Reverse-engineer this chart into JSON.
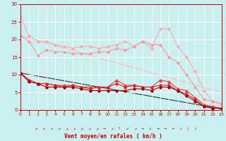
{
  "background_color": "#c8f0f0",
  "grid_color": "#ffffff",
  "xlabel": "Vent moyen/en rafales ( km/h )",
  "xlabel_color": "#cc0000",
  "tick_color": "#cc0000",
  "ylim": [
    0,
    30
  ],
  "xlim": [
    0,
    23
  ],
  "yticks": [
    0,
    5,
    10,
    15,
    20,
    25,
    30
  ],
  "xticks": [
    0,
    1,
    2,
    3,
    4,
    5,
    6,
    7,
    8,
    9,
    10,
    11,
    12,
    13,
    14,
    15,
    16,
    17,
    18,
    19,
    20,
    21,
    22,
    23
  ],
  "series": [
    {
      "x": [
        0,
        1,
        2,
        3,
        4,
        5,
        6,
        7,
        8,
        9,
        10,
        11,
        12,
        13,
        14,
        15,
        16,
        17,
        18,
        19,
        20,
        21,
        22,
        23
      ],
      "y": [
        26.5,
        21.0,
        19.5,
        19.5,
        18.5,
        18.0,
        17.5,
        18.0,
        18.0,
        17.5,
        18.0,
        18.5,
        19.5,
        18.0,
        19.5,
        17.5,
        23.0,
        23.0,
        18.0,
        15.0,
        11.0,
        5.5,
        2.5,
        2.0
      ],
      "color": "#ffaaaa",
      "marker": "D",
      "markersize": 1.8,
      "linewidth": 0.8,
      "zorder": 2
    },
    {
      "x": [
        0,
        1,
        2,
        3,
        4,
        5,
        6,
        7,
        8,
        9,
        10,
        11,
        12,
        13,
        14,
        15,
        16,
        17,
        18,
        19,
        20,
        21,
        22,
        23
      ],
      "y": [
        21.0,
        19.5,
        15.5,
        17.0,
        16.5,
        16.5,
        16.0,
        16.0,
        16.0,
        16.5,
        16.5,
        17.5,
        17.0,
        18.0,
        19.5,
        18.5,
        18.5,
        15.0,
        13.5,
        10.0,
        6.5,
        3.0,
        2.5,
        1.5
      ],
      "color": "#ff9999",
      "marker": "D",
      "markersize": 1.8,
      "linewidth": 0.8,
      "zorder": 2
    },
    {
      "x": [
        0,
        1,
        2,
        3,
        4,
        5,
        6,
        7,
        8,
        9,
        10,
        11,
        12,
        13,
        14,
        15,
        16,
        17,
        18,
        19,
        20,
        21,
        22,
        23
      ],
      "y": [
        10.5,
        8.5,
        7.5,
        7.5,
        7.0,
        7.0,
        7.0,
        6.5,
        6.5,
        6.5,
        6.5,
        8.5,
        7.0,
        7.0,
        6.5,
        6.5,
        8.5,
        8.0,
        6.0,
        5.5,
        3.5,
        1.5,
        1.0,
        0.5
      ],
      "color": "#ff3333",
      "marker": "^",
      "markersize": 2.5,
      "linewidth": 0.8,
      "zorder": 3
    },
    {
      "x": [
        0,
        1,
        2,
        3,
        4,
        5,
        6,
        7,
        8,
        9,
        10,
        11,
        12,
        13,
        14,
        15,
        16,
        17,
        18,
        19,
        20,
        21,
        22,
        23
      ],
      "y": [
        10.5,
        8.5,
        7.5,
        7.5,
        7.0,
        6.5,
        7.0,
        6.5,
        6.0,
        6.5,
        6.5,
        7.5,
        6.5,
        7.0,
        6.5,
        6.5,
        7.0,
        7.0,
        5.5,
        4.5,
        3.0,
        1.0,
        0.5,
        0.5
      ],
      "color": "#dd2222",
      "marker": "D",
      "markersize": 1.8,
      "linewidth": 0.8,
      "zorder": 3
    },
    {
      "x": [
        0,
        1,
        2,
        3,
        4,
        5,
        6,
        7,
        8,
        9,
        10,
        11,
        12,
        13,
        14,
        15,
        16,
        17,
        18,
        19,
        20,
        21,
        22,
        23
      ],
      "y": [
        10.5,
        8.0,
        7.5,
        6.5,
        6.5,
        6.5,
        6.5,
        6.0,
        5.5,
        5.5,
        5.5,
        5.5,
        5.5,
        6.0,
        6.0,
        5.5,
        6.5,
        6.5,
        5.5,
        4.0,
        2.5,
        1.0,
        0.5,
        0.5
      ],
      "color": "#aa0000",
      "marker": "D",
      "markersize": 1.8,
      "linewidth": 0.8,
      "zorder": 3
    },
    {
      "x": [
        0,
        23
      ],
      "y": [
        10.5,
        0.3
      ],
      "color": "#333333",
      "marker": null,
      "markersize": 0,
      "linewidth": 0.8,
      "zorder": 1
    },
    {
      "x": [
        0,
        23
      ],
      "y": [
        21.0,
        5.0
      ],
      "color": "#ffbbbb",
      "marker": null,
      "markersize": 0,
      "linewidth": 0.8,
      "zorder": 1
    }
  ],
  "wind_arrows": [
    "↗",
    "↗",
    "↗",
    "↗",
    "↗",
    "↗",
    "↗",
    "↗",
    "↗",
    "→",
    "↗",
    "↑",
    "↙",
    "↗",
    "→",
    "↙",
    "→",
    "→",
    "→",
    "↓",
    "↓",
    "↓"
  ]
}
